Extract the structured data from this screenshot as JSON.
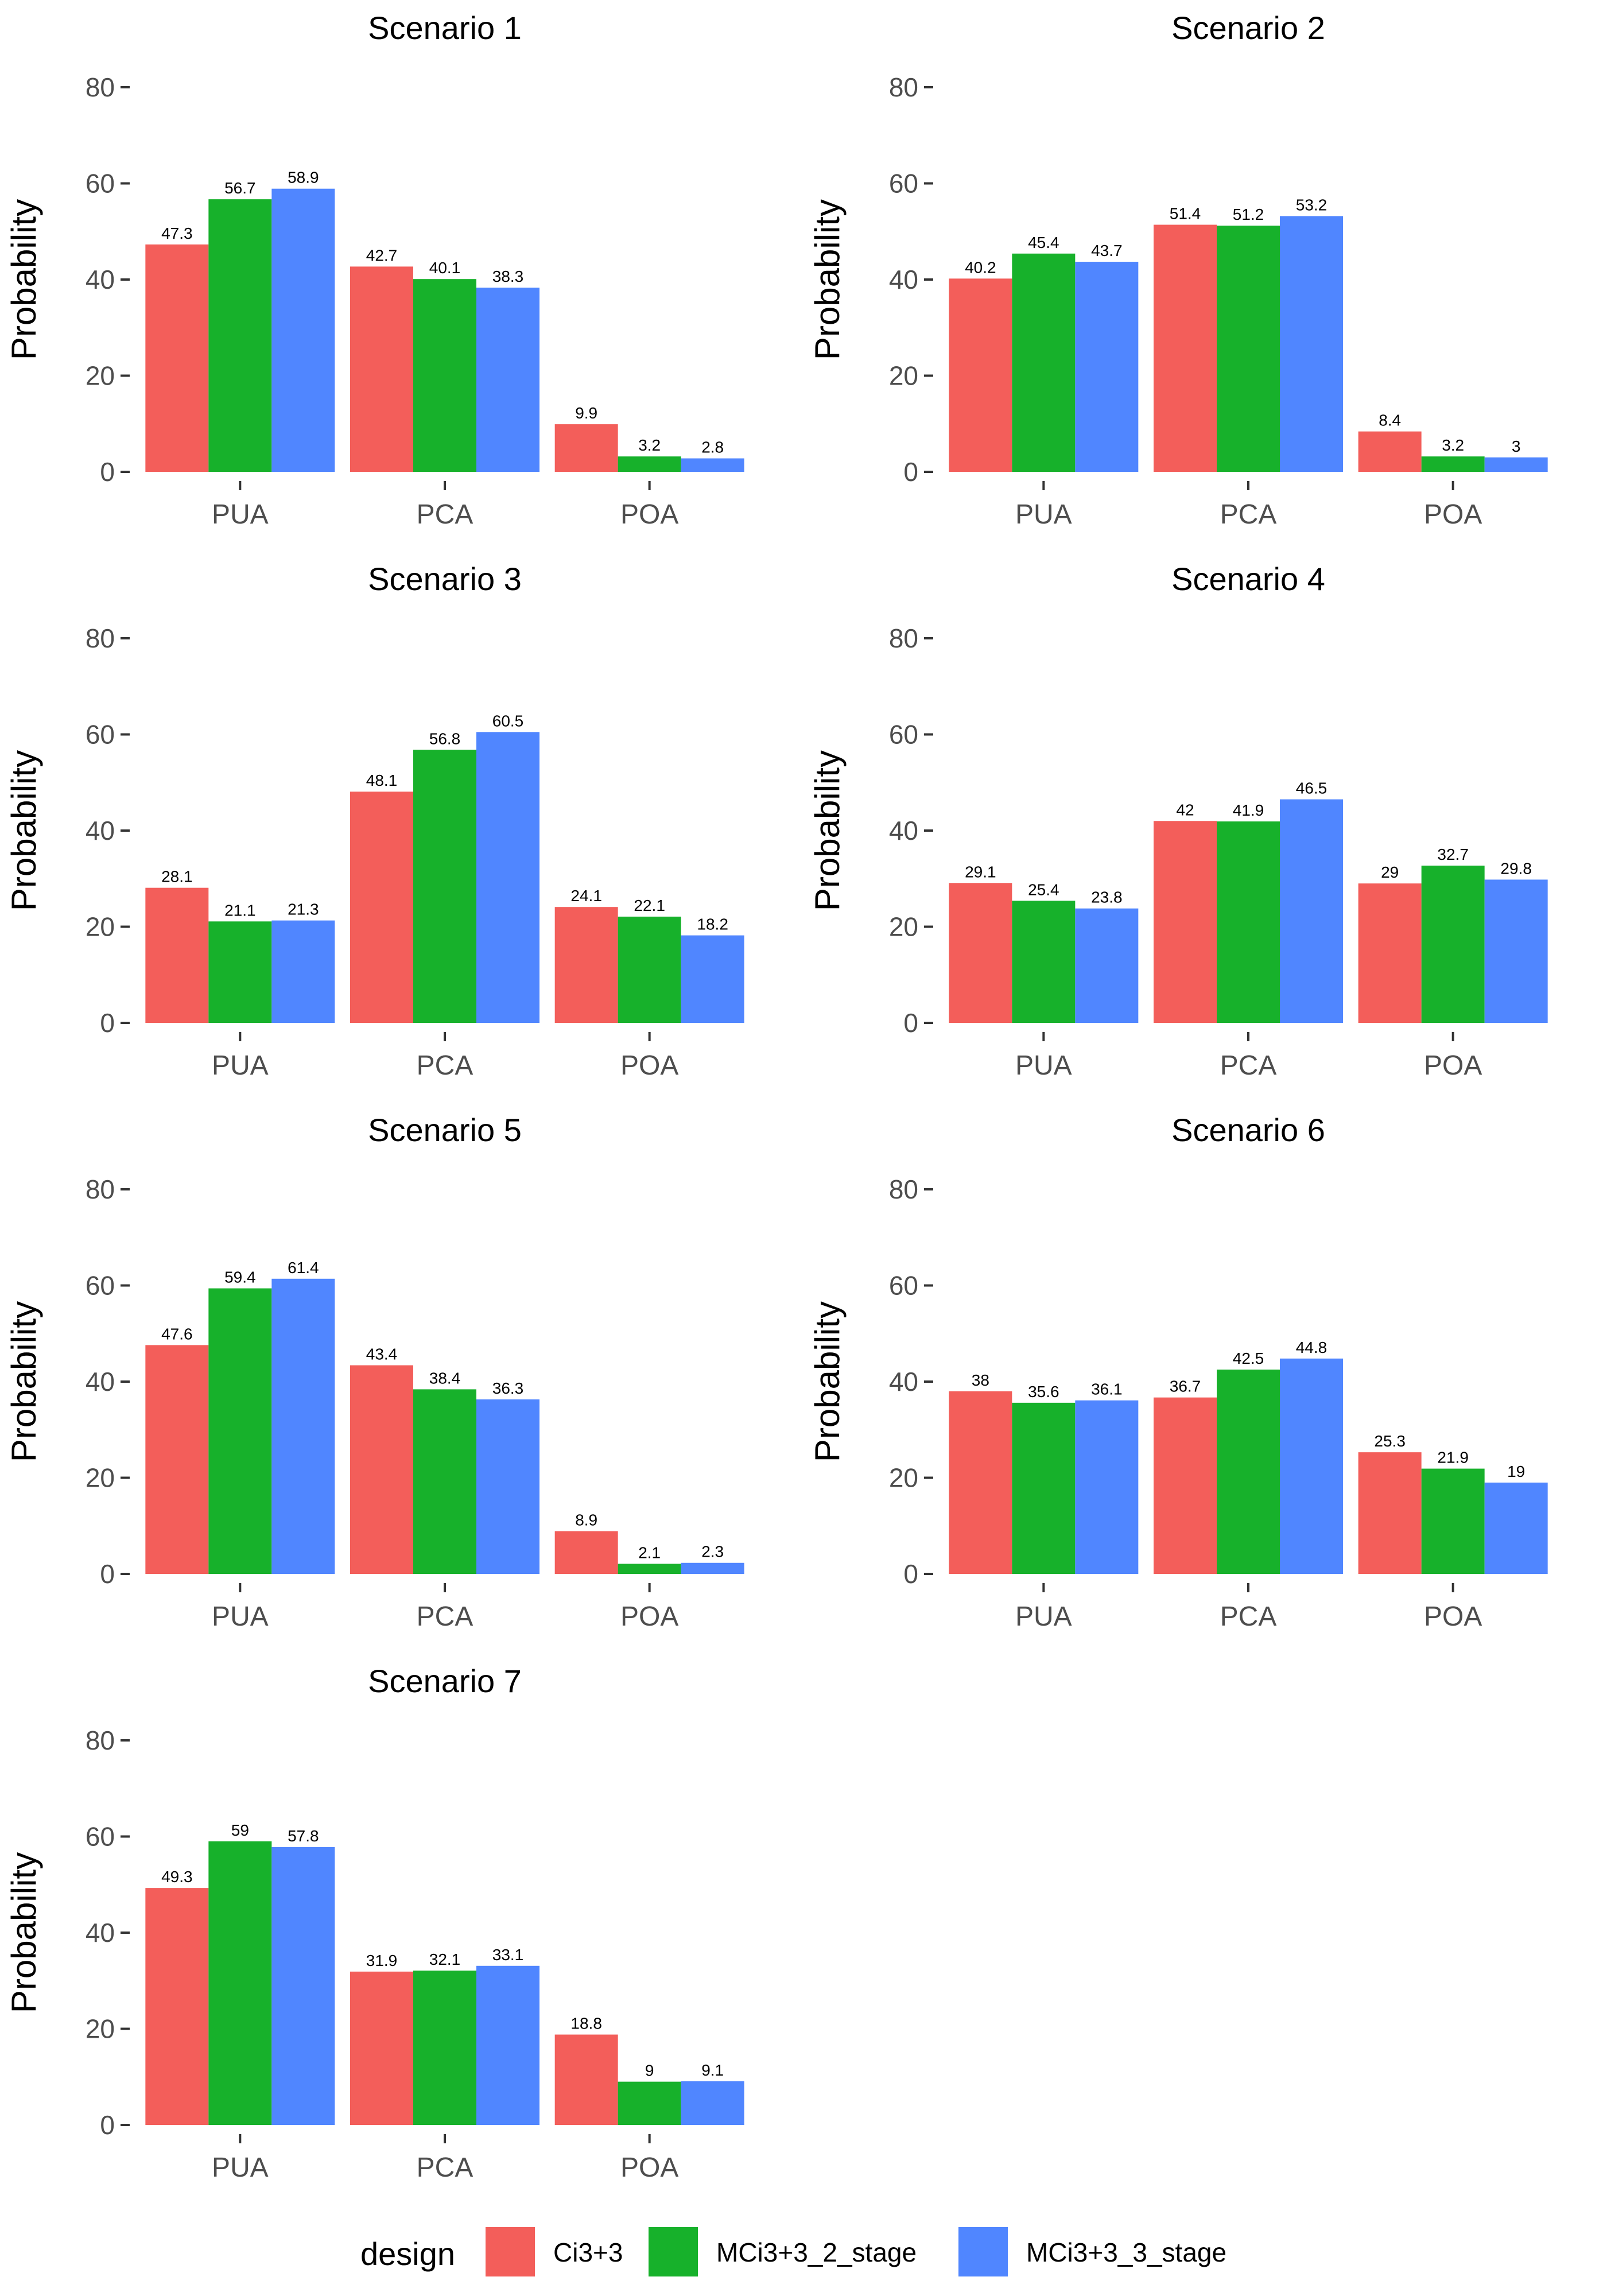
{
  "chart_data": {
    "type": "bar",
    "ylabel": "Probability",
    "ylim": [
      0,
      80
    ],
    "yticks": [
      0,
      20,
      40,
      60,
      80
    ],
    "categories": [
      "PUA",
      "PCA",
      "POA"
    ],
    "legend": {
      "title": "design",
      "position": "bottom",
      "entries": [
        {
          "name": "Ci3+3",
          "color": "#F35E5A"
        },
        {
          "name": "MCi3+3_2_stage",
          "color": "#17B12B"
        },
        {
          "name": "MCi3+3_3_stage",
          "color": "#5086FF"
        }
      ]
    },
    "panels": [
      {
        "title": "Scenario 1",
        "series": [
          {
            "name": "Ci3+3",
            "values": [
              47.3,
              42.7,
              9.9
            ],
            "labels": [
              "47.3",
              "42.7",
              "9.9"
            ]
          },
          {
            "name": "MCi3+3_2_stage",
            "values": [
              56.7,
              40.1,
              3.2
            ],
            "labels": [
              "56.7",
              "40.1",
              "3.2"
            ]
          },
          {
            "name": "MCi3+3_3_stage",
            "values": [
              58.9,
              38.3,
              2.8
            ],
            "labels": [
              "58.9",
              "38.3",
              "2.8"
            ]
          }
        ]
      },
      {
        "title": "Scenario 2",
        "series": [
          {
            "name": "Ci3+3",
            "values": [
              40.2,
              51.4,
              8.4
            ],
            "labels": [
              "40.2",
              "51.4",
              "8.4"
            ]
          },
          {
            "name": "MCi3+3_2_stage",
            "values": [
              45.4,
              51.2,
              3.2
            ],
            "labels": [
              "45.4",
              "51.2",
              "3.2"
            ]
          },
          {
            "name": "MCi3+3_3_stage",
            "values": [
              43.7,
              53.2,
              3
            ],
            "labels": [
              "43.7",
              "53.2",
              "3"
            ]
          }
        ]
      },
      {
        "title": "Scenario 3",
        "series": [
          {
            "name": "Ci3+3",
            "values": [
              28.1,
              48.1,
              24.1
            ],
            "labels": [
              "28.1",
              "48.1",
              "24.1"
            ]
          },
          {
            "name": "MCi3+3_2_stage",
            "values": [
              21.1,
              56.8,
              22.1
            ],
            "labels": [
              "21.1",
              "56.8",
              "22.1"
            ]
          },
          {
            "name": "MCi3+3_3_stage",
            "values": [
              21.3,
              60.5,
              18.2
            ],
            "labels": [
              "21.3",
              "60.5",
              "18.2"
            ]
          }
        ]
      },
      {
        "title": "Scenario 4",
        "series": [
          {
            "name": "Ci3+3",
            "values": [
              29.1,
              42,
              29
            ],
            "labels": [
              "29.1",
              "42",
              "29"
            ]
          },
          {
            "name": "MCi3+3_2_stage",
            "values": [
              25.4,
              41.9,
              32.7
            ],
            "labels": [
              "25.4",
              "41.9",
              "32.7"
            ]
          },
          {
            "name": "MCi3+3_3_stage",
            "values": [
              23.8,
              46.5,
              29.8
            ],
            "labels": [
              "23.8",
              "46.5",
              "29.8"
            ]
          }
        ]
      },
      {
        "title": "Scenario 5",
        "series": [
          {
            "name": "Ci3+3",
            "values": [
              47.6,
              43.4,
              8.9
            ],
            "labels": [
              "47.6",
              "43.4",
              "8.9"
            ]
          },
          {
            "name": "MCi3+3_2_stage",
            "values": [
              59.4,
              38.4,
              2.1
            ],
            "labels": [
              "59.4",
              "38.4",
              "2.1"
            ]
          },
          {
            "name": "MCi3+3_3_stage",
            "values": [
              61.4,
              36.3,
              2.3
            ],
            "labels": [
              "61.4",
              "36.3",
              "2.3"
            ]
          }
        ]
      },
      {
        "title": "Scenario 6",
        "series": [
          {
            "name": "Ci3+3",
            "values": [
              38,
              36.7,
              25.3
            ],
            "labels": [
              "38",
              "36.7",
              "25.3"
            ]
          },
          {
            "name": "MCi3+3_2_stage",
            "values": [
              35.6,
              42.5,
              21.9
            ],
            "labels": [
              "35.6",
              "42.5",
              "21.9"
            ]
          },
          {
            "name": "MCi3+3_3_stage",
            "values": [
              36.1,
              44.8,
              19
            ],
            "labels": [
              "36.1",
              "44.8",
              "19"
            ]
          }
        ]
      },
      {
        "title": "Scenario 7",
        "series": [
          {
            "name": "Ci3+3",
            "values": [
              49.3,
              31.9,
              18.8
            ],
            "labels": [
              "49.3",
              "31.9",
              "18.8"
            ]
          },
          {
            "name": "MCi3+3_2_stage",
            "values": [
              59,
              32.1,
              9
            ],
            "labels": [
              "59",
              "32.1",
              "9"
            ]
          },
          {
            "name": "MCi3+3_3_stage",
            "values": [
              57.8,
              33.1,
              9.1
            ],
            "labels": [
              "57.8",
              "33.1",
              "9.1"
            ]
          }
        ]
      }
    ]
  }
}
